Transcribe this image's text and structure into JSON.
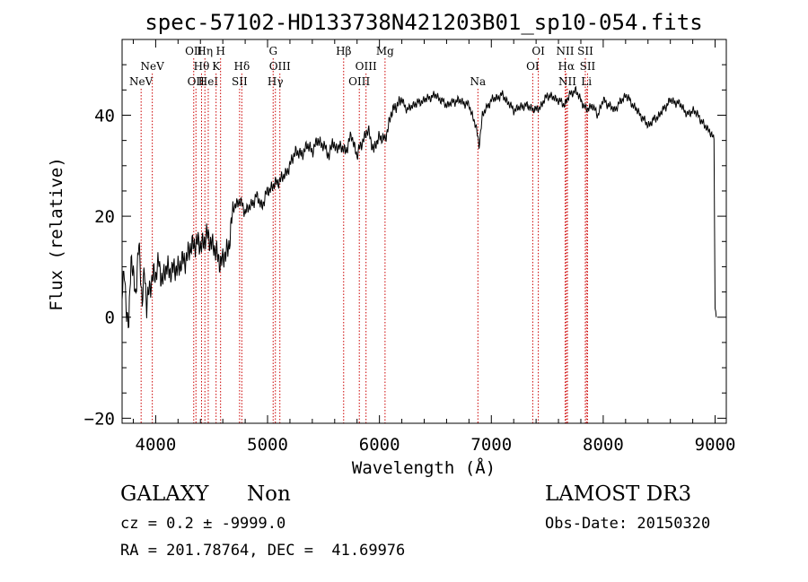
{
  "chart_data": {
    "type": "line",
    "title": "spec-57102-HD133738N421203B01_sp10-054.fits",
    "xlabel": "Wavelength (Å)",
    "ylabel": "Flux (relative)",
    "xlim": [
      3700,
      9100
    ],
    "ylim": [
      -21,
      55
    ],
    "xticks": [
      4000,
      5000,
      6000,
      7000,
      8000,
      9000
    ],
    "yticks": [
      -20,
      0,
      20,
      40
    ],
    "grid": false,
    "line_color": "#000000",
    "marker_line_color": "#cc0000",
    "series": [
      {
        "x": [
          3700,
          3720,
          3740,
          3760,
          3780,
          3800,
          3820,
          3850,
          3880,
          3900,
          3920,
          3950,
          3980,
          4000,
          4030,
          4060,
          4100,
          4150,
          4200,
          4250,
          4300,
          4350,
          4400,
          4450,
          4500,
          4550,
          4600,
          4650,
          4700,
          4750,
          4800,
          4850,
          4900,
          4950,
          5000,
          5050,
          5100,
          5150,
          5200,
          5250,
          5300,
          5350,
          5400,
          5450,
          5500,
          5550,
          5580,
          5600,
          5620,
          5700,
          5750,
          5800,
          5850,
          5900,
          5950,
          6000,
          6050,
          6100,
          6150,
          6200,
          6250,
          6300,
          6400,
          6500,
          6600,
          6700,
          6800,
          6860,
          6890,
          6920,
          7000,
          7100,
          7200,
          7300,
          7400,
          7450,
          7500,
          7600,
          7650,
          7700,
          7750,
          7800,
          7850,
          7900,
          7950,
          8000,
          8100,
          8200,
          8300,
          8400,
          8500,
          8600,
          8700,
          8750,
          8800,
          8850,
          8900,
          8950,
          8990,
          9000,
          9010
        ],
        "y": [
          5,
          8,
          2,
          -2,
          12,
          8,
          5,
          14,
          3,
          10,
          2,
          6,
          9,
          8,
          11,
          7,
          10,
          9,
          10,
          11,
          13,
          15,
          14,
          16,
          15,
          12,
          11,
          14,
          22,
          23,
          21,
          22,
          24,
          22,
          25,
          26,
          27,
          28,
          30,
          33,
          32,
          34,
          33,
          35,
          34,
          32,
          35,
          33,
          34,
          33,
          36,
          32,
          35,
          37,
          33,
          36,
          35,
          40,
          42,
          43,
          41,
          42,
          43,
          44,
          42,
          43,
          42,
          38,
          34,
          40,
          43,
          44,
          41,
          42,
          41,
          42,
          44,
          43,
          42,
          44,
          45,
          43,
          41,
          42,
          40,
          43,
          41,
          44,
          41,
          38,
          40,
          43,
          42,
          40,
          41,
          40,
          38,
          37,
          35,
          2,
          0
        ]
      }
    ],
    "line_markers": [
      {
        "label": "NeV",
        "x": 3870,
        "row": 2
      },
      {
        "label": "NeV",
        "x": 3970,
        "row": 1
      },
      {
        "label": "OII",
        "x": 4340,
        "row": 0
      },
      {
        "label": "Hη",
        "x": 4440,
        "row": 0
      },
      {
        "label": "Hθ",
        "x": 4410,
        "row": 1
      },
      {
        "label": "OII",
        "x": 4360,
        "row": 2
      },
      {
        "label": "HeI",
        "x": 4470,
        "row": 2
      },
      {
        "label": "H",
        "x": 4580,
        "row": 0
      },
      {
        "label": "K",
        "x": 4540,
        "row": 1
      },
      {
        "label": "Hδ",
        "x": 4770,
        "row": 1
      },
      {
        "label": "SII",
        "x": 4750,
        "row": 2
      },
      {
        "label": "G",
        "x": 5050,
        "row": 0
      },
      {
        "label": "OIII",
        "x": 5110,
        "row": 1
      },
      {
        "label": "Hγ",
        "x": 5070,
        "row": 2
      },
      {
        "label": "Hβ",
        "x": 5680,
        "row": 0
      },
      {
        "label": "OIII",
        "x": 5880,
        "row": 1
      },
      {
        "label": "OIII",
        "x": 5820,
        "row": 2
      },
      {
        "label": "Mg",
        "x": 6050,
        "row": 0
      },
      {
        "label": "Na",
        "x": 6880,
        "row": 2
      },
      {
        "label": "OI",
        "x": 7420,
        "row": 0
      },
      {
        "label": "OI",
        "x": 7370,
        "row": 1
      },
      {
        "label": "NII",
        "x": 7660,
        "row": 0
      },
      {
        "label": "Hα",
        "x": 7670,
        "row": 1
      },
      {
        "label": "NII",
        "x": 7680,
        "row": 2
      },
      {
        "label": "SII",
        "x": 7840,
        "row": 0
      },
      {
        "label": "SII",
        "x": 7860,
        "row": 1
      },
      {
        "label": "Li",
        "x": 7850,
        "row": 2
      }
    ]
  },
  "info": {
    "class_label": "GALAXY",
    "subclass_label": "Non",
    "survey_label": "LAMOST DR3",
    "cz_label": "cz = 0.2 ± -9999.0",
    "obs_date_label": "Obs-Date: 20150320",
    "radec_label": "RA = 201.78764, DEC =  41.69976"
  }
}
